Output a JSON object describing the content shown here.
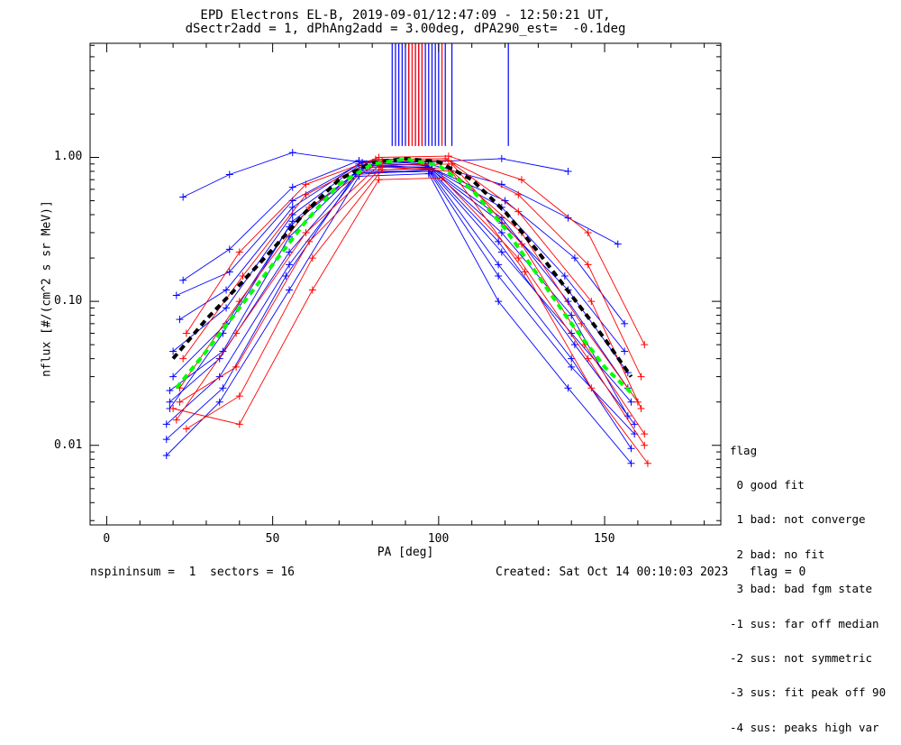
{
  "title": {
    "line1": "EPD Electrons EL-B, 2019-09-01/12:47:09 - 12:50:21 UT,",
    "line2": "dSectr2add = 1, dPhAng2add = 3.00deg, dPA290_est=  -0.1deg"
  },
  "footer": {
    "left": "nspininsum =  1  sectors = 16",
    "right": "Created: Sat Oct 14 00:10:03 2023   flag = 0"
  },
  "legend": {
    "title": "flag",
    "items": [
      " 0 good fit",
      " 1 bad: not converge",
      " 2 bad: no fit",
      " 3 bad: bad fgm state",
      "-1 sus: far off median",
      "-2 sus: not symmetric",
      "-3 sus: fit peak off 90",
      "-4 sus: peaks high var"
    ]
  },
  "colors": {
    "blue": "#0000ff",
    "red": "#ff0000",
    "black": "#000000",
    "green": "#00ff00"
  },
  "chart_data": {
    "type": "line",
    "xlabel": "PA [deg]",
    "ylabel": "nflux [#/(cm^2 s sr MeV)]",
    "xlim": [
      -5,
      185
    ],
    "ylim": [
      0.0028,
      6.2
    ],
    "yscale": "log",
    "xticks": [
      0,
      50,
      100,
      150
    ],
    "xtick_labels": [
      "0",
      "50",
      "100",
      "150"
    ],
    "yticks": [
      0.01,
      0.1,
      1.0
    ],
    "ytick_labels": [
      "0.01",
      "0.10",
      "1.00"
    ],
    "series": [
      {
        "color": "blue",
        "style": "thin-line-plus",
        "x": [
          23,
          37,
          56,
          76,
          97,
          119,
          139
        ],
        "y": [
          0.53,
          0.76,
          1.08,
          0.93,
          0.93,
          0.98,
          0.8
        ]
      },
      {
        "color": "blue",
        "style": "thin-line-plus",
        "x": [
          23,
          37,
          56,
          76,
          97,
          119,
          139,
          154
        ],
        "y": [
          0.14,
          0.23,
          0.62,
          0.95,
          0.9,
          0.65,
          0.38,
          0.25
        ]
      },
      {
        "color": "blue",
        "style": "thin-line-plus",
        "x": [
          20,
          36,
          56,
          76,
          97,
          119,
          139,
          157
        ],
        "y": [
          0.045,
          0.09,
          0.4,
          0.88,
          0.85,
          0.35,
          0.12,
          0.032
        ]
      },
      {
        "color": "blue",
        "style": "thin-line-plus",
        "x": [
          19,
          35,
          55,
          76,
          97,
          119,
          140,
          158
        ],
        "y": [
          0.024,
          0.045,
          0.28,
          0.82,
          0.83,
          0.22,
          0.06,
          0.02
        ]
      },
      {
        "color": "blue",
        "style": "thin-line-plus",
        "x": [
          18,
          34,
          55,
          76,
          97,
          118,
          140,
          159
        ],
        "y": [
          0.014,
          0.03,
          0.18,
          0.78,
          0.8,
          0.15,
          0.035,
          0.012
        ]
      },
      {
        "color": "blue",
        "style": "thin-line-plus",
        "x": [
          18,
          34,
          55,
          76,
          97,
          118,
          139,
          158
        ],
        "y": [
          0.0085,
          0.02,
          0.12,
          0.74,
          0.77,
          0.1,
          0.025,
          0.0075
        ]
      },
      {
        "color": "blue",
        "style": "thin-line-plus",
        "x": [
          21,
          37,
          56,
          77,
          96,
          120,
          141,
          156
        ],
        "y": [
          0.11,
          0.16,
          0.5,
          0.92,
          0.88,
          0.5,
          0.2,
          0.07
        ]
      },
      {
        "color": "blue",
        "style": "thin-line-plus",
        "x": [
          19,
          35,
          55,
          77,
          97,
          119,
          140,
          157
        ],
        "y": [
          0.018,
          0.06,
          0.33,
          0.85,
          0.86,
          0.3,
          0.08,
          0.016
        ]
      },
      {
        "color": "blue",
        "style": "thin-line-plus",
        "x": [
          22,
          36,
          56,
          76,
          98,
          119,
          138,
          156
        ],
        "y": [
          0.075,
          0.12,
          0.45,
          0.9,
          0.84,
          0.45,
          0.15,
          0.045
        ]
      },
      {
        "color": "blue",
        "style": "thin-line-plus",
        "x": [
          18,
          35,
          54,
          75,
          97,
          118,
          140,
          158
        ],
        "y": [
          0.011,
          0.025,
          0.15,
          0.76,
          0.82,
          0.18,
          0.04,
          0.0095
        ]
      },
      {
        "color": "blue",
        "style": "thin-line-plus",
        "x": [
          20,
          36,
          56,
          78,
          96,
          119,
          139,
          157
        ],
        "y": [
          0.03,
          0.07,
          0.36,
          0.88,
          0.9,
          0.38,
          0.1,
          0.025
        ]
      },
      {
        "color": "blue",
        "style": "thin-line-plus",
        "x": [
          19,
          34,
          55,
          76,
          98,
          118,
          141,
          159
        ],
        "y": [
          0.02,
          0.04,
          0.22,
          0.8,
          0.8,
          0.26,
          0.05,
          0.014
        ]
      },
      {
        "color": "red",
        "style": "thin-line-plus",
        "x": [
          24,
          40,
          60,
          82,
          103,
          125,
          145,
          162
        ],
        "y": [
          0.06,
          0.22,
          0.65,
          1.0,
          1.02,
          0.7,
          0.3,
          0.05
        ]
      },
      {
        "color": "red",
        "style": "thin-line-plus",
        "x": [
          22,
          40,
          61,
          83,
          103,
          124,
          146,
          161
        ],
        "y": [
          0.025,
          0.1,
          0.45,
          0.95,
          0.95,
          0.42,
          0.1,
          0.018
        ]
      },
      {
        "color": "red",
        "style": "thin-line-plus",
        "x": [
          21,
          39,
          60,
          82,
          104,
          125,
          144,
          162
        ],
        "y": [
          0.015,
          0.06,
          0.3,
          0.88,
          0.9,
          0.25,
          0.05,
          0.012
        ]
      },
      {
        "color": "red",
        "style": "thin-line-plus",
        "x": [
          24,
          40,
          62,
          83,
          103,
          126,
          146,
          163
        ],
        "y": [
          0.013,
          0.022,
          0.2,
          0.82,
          0.85,
          0.16,
          0.025,
          0.0075
        ]
      },
      {
        "color": "red",
        "style": "thin-line-plus",
        "x": [
          23,
          41,
          60,
          81,
          102,
          124,
          145,
          161
        ],
        "y": [
          0.04,
          0.15,
          0.55,
          0.97,
          0.98,
          0.55,
          0.18,
          0.03
        ]
      },
      {
        "color": "red",
        "style": "thin-line-plus",
        "x": [
          22,
          39,
          61,
          83,
          104,
          125,
          143,
          160
        ],
        "y": [
          0.02,
          0.035,
          0.26,
          0.86,
          0.8,
          0.3,
          0.07,
          0.02
        ]
      },
      {
        "color": "red",
        "style": "thin-line-plus",
        "x": [
          20,
          40,
          62,
          82,
          101,
          124,
          145,
          162
        ],
        "y": [
          0.018,
          0.014,
          0.12,
          0.7,
          0.72,
          0.2,
          0.04,
          0.01
        ]
      },
      {
        "color": "black",
        "style": "thick-dashed",
        "name": "",
        "x": [
          20,
          30,
          40,
          50,
          60,
          70,
          80,
          90,
          100,
          110,
          120,
          130,
          140,
          150,
          158
        ],
        "y": [
          0.04,
          0.075,
          0.13,
          0.23,
          0.42,
          0.7,
          0.92,
          0.98,
          0.93,
          0.7,
          0.42,
          0.22,
          0.11,
          0.055,
          0.03
        ]
      },
      {
        "color": "green",
        "style": "thick-dashed",
        "name": "",
        "x": [
          21,
          30,
          40,
          50,
          60,
          70,
          80,
          90,
          100,
          110,
          120,
          130,
          140,
          150,
          159
        ],
        "y": [
          0.025,
          0.045,
          0.09,
          0.18,
          0.36,
          0.65,
          0.9,
          0.97,
          0.88,
          0.6,
          0.32,
          0.15,
          0.07,
          0.035,
          0.022
        ]
      }
    ],
    "vertical_markers": {
      "ymin": 1.2,
      "ymax": 6.2,
      "blue_x": [
        86,
        87,
        88,
        89,
        90,
        91,
        93,
        94,
        95,
        96,
        97,
        98,
        99,
        100,
        102,
        104
      ],
      "red_x": [
        91,
        92,
        93,
        94,
        95,
        101
      ],
      "tall_x": [
        121
      ]
    }
  }
}
